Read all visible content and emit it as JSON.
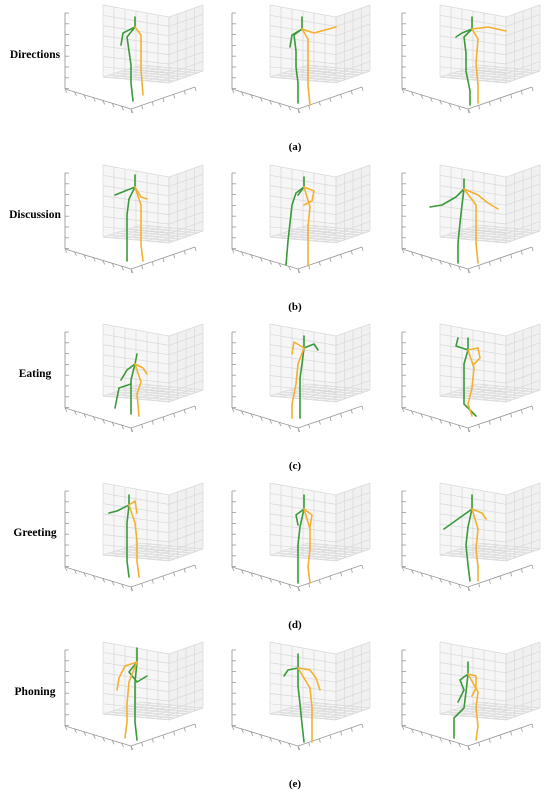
{
  "colors": {
    "left_limb": "#3a9a3a",
    "right_limb": "#f4b030",
    "grid": "#d8d8d8",
    "wall": "#f6f6f6"
  },
  "rows": [
    {
      "label": "Directions",
      "caption": "(a)"
    },
    {
      "label": "Discussion",
      "caption": "(b)"
    },
    {
      "label": "Eating",
      "caption": "(c)"
    },
    {
      "label": "Greeting",
      "caption": "(d)"
    },
    {
      "label": "Phoning",
      "caption": "(e)"
    }
  ]
}
